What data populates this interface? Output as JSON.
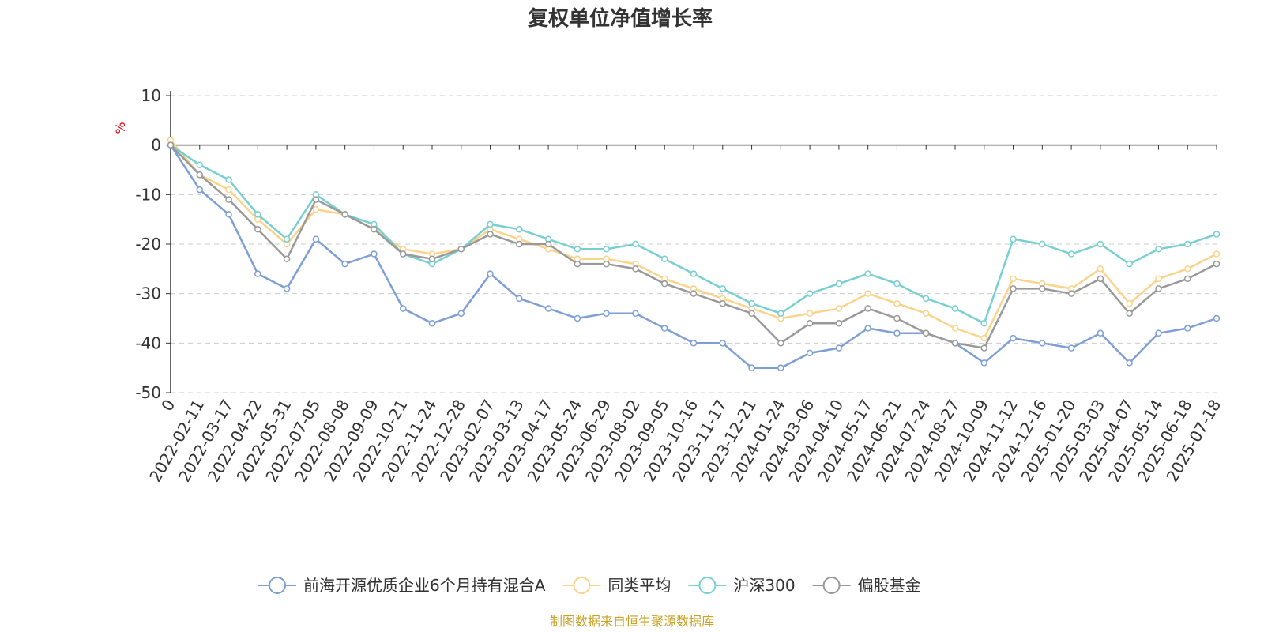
{
  "chart_data": {
    "type": "line",
    "title": "复权单位净值增长率",
    "ylabel": "%",
    "ylim": [
      -50,
      10
    ],
    "yticks": [
      10,
      0,
      -10,
      -20,
      -30,
      -40,
      -50
    ],
    "grid": true,
    "legend_position": "bottom-center",
    "source": "制图数据来自恒生聚源数据库",
    "xticks": [
      "0",
      "2022-02-11",
      "2022-03-17",
      "2022-04-22",
      "2022-05-31",
      "2022-07-05",
      "2022-08-08",
      "2022-09-09",
      "2022-10-21",
      "2022-11-24",
      "2022-12-28",
      "2023-02-07",
      "2023-03-13",
      "2023-04-17",
      "2023-05-24",
      "2023-06-29",
      "2023-08-02",
      "2023-09-05",
      "2023-10-16",
      "2023-11-17",
      "2023-12-21",
      "2024-01-24",
      "2024-03-06",
      "2024-04-10",
      "2024-05-17",
      "2024-06-21",
      "2024-07-24",
      "2024-08-27",
      "2024-10-09",
      "2024-11-12",
      "2024-12-16",
      "2025-01-20",
      "2025-03-03",
      "2025-04-07",
      "2025-05-14",
      "2025-06-18",
      "2025-07-18"
    ],
    "series": [
      {
        "name": "前海开源优质企业6个月持有混合A",
        "color": "#7e9fd6",
        "values": [
          0,
          -9,
          -14,
          -26,
          -29,
          -19,
          -24,
          -22,
          -33,
          -36,
          -34,
          -26,
          -31,
          -33,
          -35,
          -34,
          -34,
          -37,
          -40,
          -40,
          -45,
          -45,
          -42,
          -41,
          -37,
          -38,
          -38,
          -40,
          -44,
          -39,
          -40,
          -41,
          -38,
          -44,
          -38,
          -37,
          -35
        ]
      },
      {
        "name": "同类平均",
        "color": "#fbd38a",
        "values": [
          1,
          -6,
          -9,
          -15,
          -20,
          -13,
          -14,
          -17,
          -21,
          -22,
          -21,
          -17,
          -19,
          -21,
          -23,
          -23,
          -24,
          -27,
          -29,
          -31,
          -33,
          -35,
          -34,
          -33,
          -30,
          -32,
          -34,
          -37,
          -39,
          -27,
          -28,
          -29,
          -25,
          -32,
          -27,
          -25,
          -22
        ]
      },
      {
        "name": "沪深300",
        "color": "#78cfd1",
        "values": [
          0,
          -4,
          -7,
          -14,
          -19,
          -10,
          -14,
          -16,
          -22,
          -24,
          -21,
          -16,
          -17,
          -19,
          -21,
          -21,
          -20,
          -23,
          -26,
          -29,
          -32,
          -34,
          -30,
          -28,
          -26,
          -28,
          -31,
          -33,
          -36,
          -19,
          -20,
          -22,
          -20,
          -24,
          -21,
          -20,
          -18
        ]
      },
      {
        "name": "偏股基金",
        "color": "#999999",
        "values": [
          0,
          -6,
          -11,
          -17,
          -23,
          -11,
          -14,
          -17,
          -22,
          -23,
          -21,
          -18,
          -20,
          -20,
          -24,
          -24,
          -25,
          -28,
          -30,
          -32,
          -34,
          -40,
          -36,
          -36,
          -33,
          -35,
          -38,
          -40,
          -41,
          -29,
          -29,
          -30,
          -27,
          -34,
          -29,
          -27,
          -24
        ]
      }
    ]
  }
}
